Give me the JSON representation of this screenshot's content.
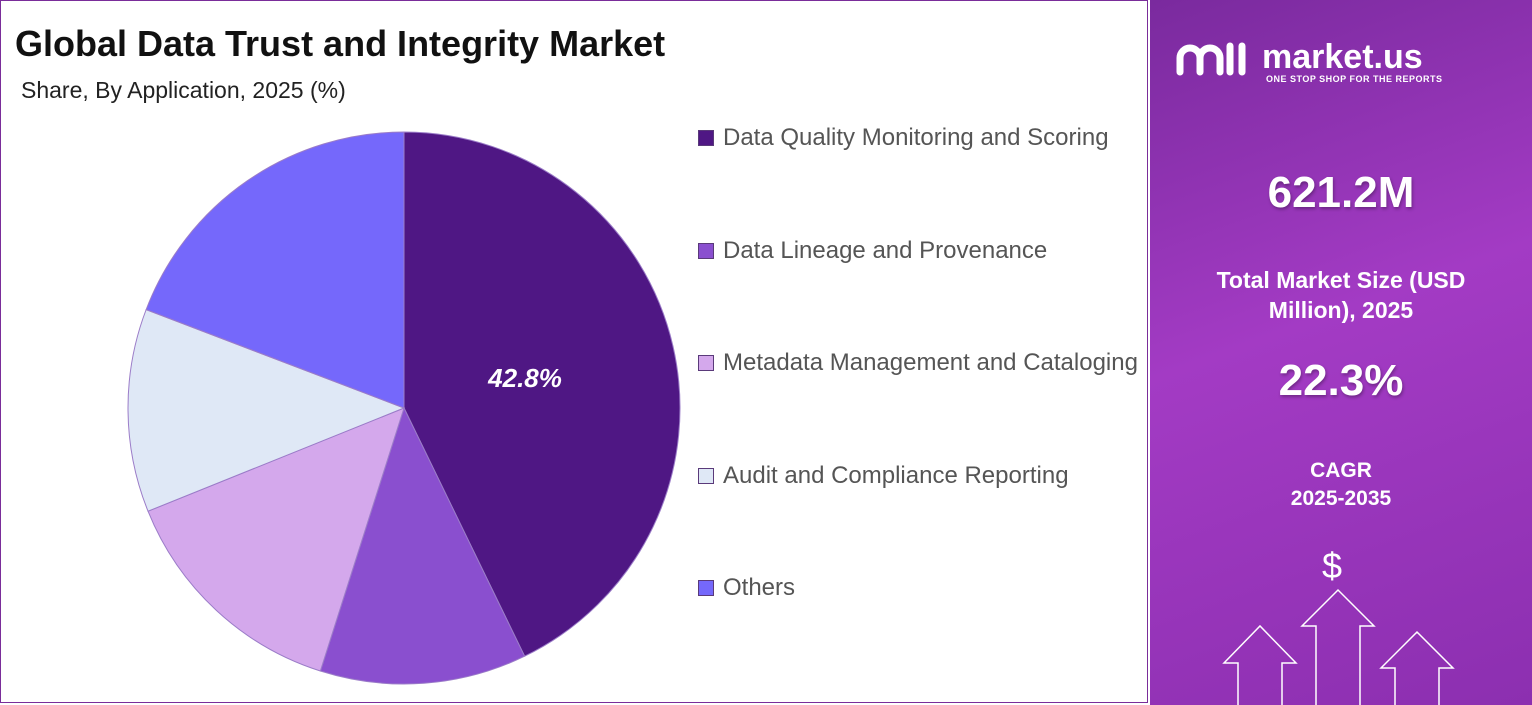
{
  "chart_data": {
    "type": "pie",
    "title": "Global Data Trust and Integrity Market",
    "subtitle": "Share, By Application, 2025 (%)",
    "categories": [
      "Data Quality Monitoring and Scoring",
      "Data Lineage and Provenance",
      "Metadata Management and Cataloging",
      "Audit and Compliance Reporting",
      "Others"
    ],
    "values": [
      42.8,
      12.1,
      14.0,
      11.9,
      19.2
    ],
    "value_labels": [
      "42.8%",
      null,
      null,
      null,
      null
    ],
    "colors": [
      "#4f1784",
      "#8a4fcf",
      "#d4a8ec",
      "#dfe8f6",
      "#7568fb"
    ],
    "legend": "right"
  },
  "side_panel": {
    "brand": "market.us",
    "tagline": "ONE STOP SHOP FOR THE REPORTS",
    "market_size": "621.2M",
    "market_size_label": "Total Market Size (USD Million), 2025",
    "cagr": "22.3%",
    "cagr_label": "CAGR",
    "cagr_period": "2025-2035",
    "currency_symbol": "$"
  }
}
